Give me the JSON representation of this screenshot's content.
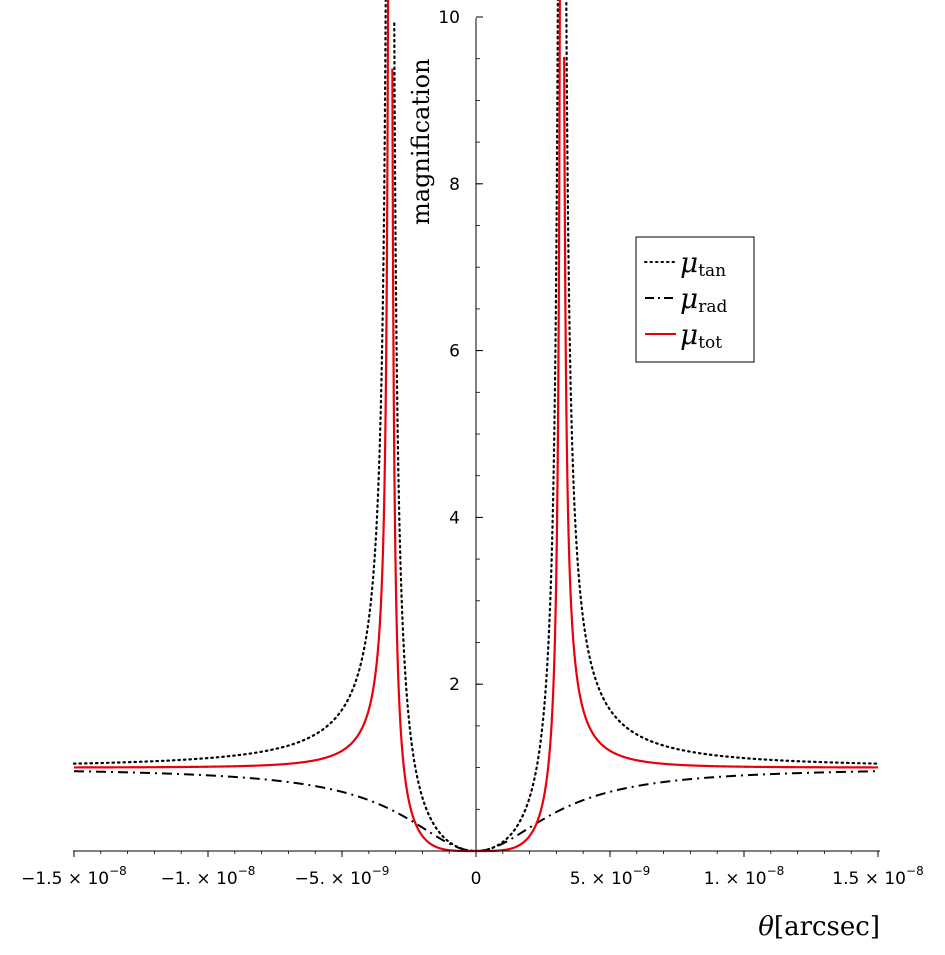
{
  "chart_data": {
    "type": "line",
    "title": "",
    "xlabel_symbol": "θ",
    "xlabel_unit": "[arcsec]",
    "ylabel": "magnification",
    "xlim": [
      -1.5e-08,
      1.5e-08
    ],
    "ylim": [
      0,
      10
    ],
    "grid": false,
    "legend_position": "top-right",
    "x_ticks": [
      {
        "value": -1.5e-08,
        "mantissa": "−1.5 × 10",
        "exp": "−8"
      },
      {
        "value": -1e-08,
        "mantissa": "−1. × 10",
        "exp": "−8"
      },
      {
        "value": -5e-09,
        "mantissa": "−5. × 10",
        "exp": "−9"
      },
      {
        "value": 0,
        "mantissa": "0",
        "exp": ""
      },
      {
        "value": 5e-09,
        "mantissa": "5. × 10",
        "exp": "−9"
      },
      {
        "value": 1e-08,
        "mantissa": "1. × 10",
        "exp": "−8"
      },
      {
        "value": 1.5e-08,
        "mantissa": "1.5 × 10",
        "exp": "−8"
      }
    ],
    "y_ticks": [
      2,
      4,
      6,
      8,
      10
    ],
    "einstein_angle": 3.2e-09,
    "series": [
      {
        "name": "μ",
        "subscript": "tan",
        "color": "#000000",
        "style": "dotted"
      },
      {
        "name": "μ",
        "subscript": "rad",
        "color": "#000000",
        "style": "dashdot"
      },
      {
        "name": "μ",
        "subscript": "tot",
        "color": "#e8000b",
        "style": "solid"
      }
    ]
  }
}
